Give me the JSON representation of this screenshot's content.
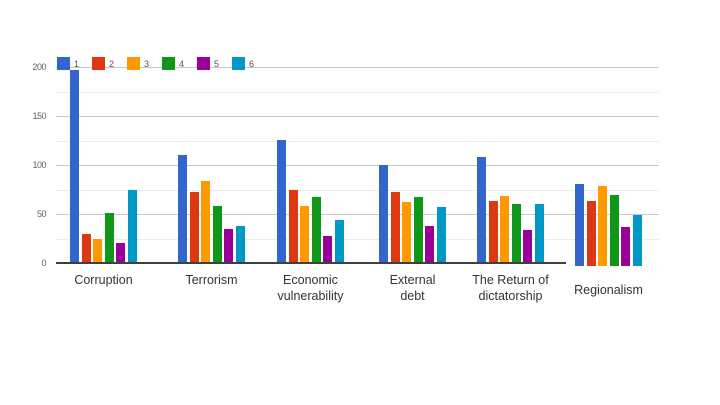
{
  "chart_data": {
    "type": "bar",
    "title": "",
    "xlabel": "",
    "ylabel": "",
    "categories": [
      "Corruption",
      "Terrorism",
      "Economic vulnerability",
      "External debt",
      "The Return of dictatorship",
      "Regionalism"
    ],
    "category_label_lines": [
      [
        "Corruption"
      ],
      [
        "Terrorism"
      ],
      [
        "Economic",
        "vulnerability"
      ],
      [
        "External",
        "debt"
      ],
      [
        "The Return of",
        "dictatorship"
      ],
      [
        "Regionalism"
      ]
    ],
    "series": [
      {
        "name": "1",
        "color": "#3366CC",
        "values": [
          197,
          110,
          125,
          100,
          108,
          84
        ]
      },
      {
        "name": "2",
        "color": "#DC3912",
        "values": [
          30,
          72,
          74,
          72,
          63,
          66
        ]
      },
      {
        "name": "3",
        "color": "#FF9900",
        "values": [
          24,
          84,
          58,
          62,
          68,
          82
        ]
      },
      {
        "name": "4",
        "color": "#109618",
        "values": [
          51,
          58,
          67,
          67,
          60,
          72
        ]
      },
      {
        "name": "5",
        "color": "#990099",
        "values": [
          20,
          35,
          28,
          38,
          34,
          40
        ]
      },
      {
        "name": "6",
        "color": "#0099C6",
        "values": [
          74,
          38,
          44,
          57,
          60,
          52
        ]
      }
    ],
    "ylim": [
      0,
      200
    ],
    "yticks": [
      0,
      50,
      100,
      150,
      200
    ],
    "minor_gridlines": [
      25,
      75,
      125,
      175
    ],
    "legend_position": "top-left",
    "grid": true,
    "colors": {
      "background": "#ffffff",
      "axis_line": "#3f3f3f",
      "major_gridline": "#c8c8c8",
      "minor_gridline": "#ececec",
      "tick_label": "#5f5f5f",
      "category_label": "#333333"
    }
  }
}
